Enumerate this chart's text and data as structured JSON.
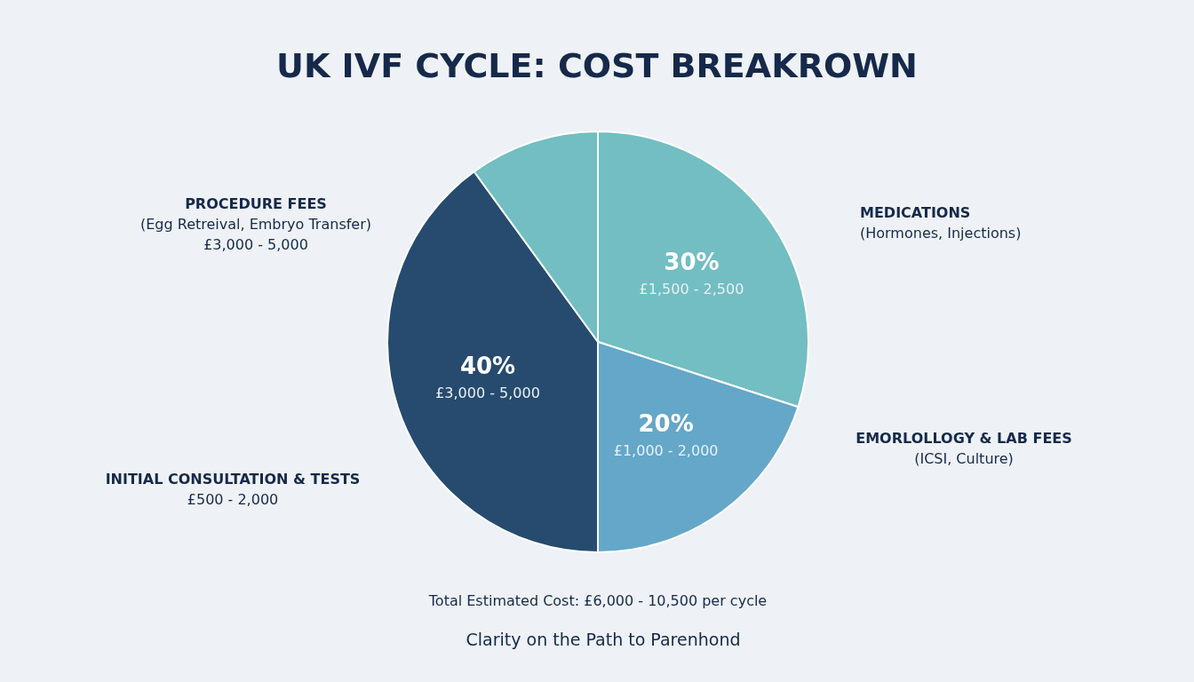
{
  "chart_data": {
    "type": "pie",
    "title": "UK IVF CYCLE: COST BREAKROWN",
    "categories": [
      null,
      null,
      null,
      null
    ],
    "values": [
      30,
      20,
      40,
      10
    ],
    "colors": [
      "#72bec3",
      "#64a7c8",
      "#264b6f",
      "#72bec3"
    ],
    "value_labels": [
      "30%\n£1,500 - 2,500",
      "20%\n£1,000 - 2,000",
      "40%\n£3,000 - 5,000",
      null
    ],
    "annotations": [
      "MEDICATIONS\n(Hormones, Injections)",
      "EMORLOLLOGY & LAB FEES\n(ICSI, Culture)",
      "PROCEDURE FEES\n(Egg Retreival, Embryo Transfer)\n£3,000 - 5,000",
      "INITIAL CONSULTATION & TESTS\n£500 - 2,000",
      "Total Estimated Cost: £6,000 - 10,500 per cycle",
      "Clarity on the Path to Parenhond"
    ]
  }
}
